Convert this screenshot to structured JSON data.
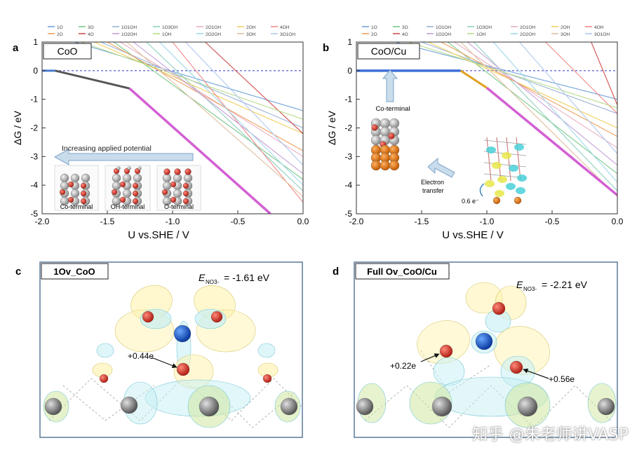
{
  "figure": {
    "panels": [
      {
        "letter": "a",
        "label": "CoO"
      },
      {
        "letter": "b",
        "label": "CoO/Cu"
      },
      {
        "letter": "c",
        "label": "1Ov_CoO",
        "energy": "E",
        "energy_sub": "NO3-",
        "energy_value": "= -1.61 eV"
      },
      {
        "letter": "d",
        "label": "Full Ov_CoO/Cu",
        "energy": "E",
        "energy_sub": "NO3-",
        "energy_value": "= -2.21 eV"
      }
    ],
    "legend": [
      {
        "name": "1O",
        "color": "#6fa3d8"
      },
      {
        "name": "3O",
        "color": "#7ac98a"
      },
      {
        "name": "1O1OH",
        "color": "#9ab3d6"
      },
      {
        "name": "1O3OH",
        "color": "#8fd0c0"
      },
      {
        "name": "2O1OH",
        "color": "#e8b0c4"
      },
      {
        "name": "2OH",
        "color": "#f0d060"
      },
      {
        "name": "4OH",
        "color": "#f08a8a"
      },
      {
        "name": "2O",
        "color": "#f0a060"
      },
      {
        "name": "4O",
        "color": "#d05050"
      },
      {
        "name": "1O2OH",
        "color": "#c5a0d8"
      },
      {
        "name": "1OH",
        "color": "#b8dc8a"
      },
      {
        "name": "2O2OH",
        "color": "#a0d8e8"
      },
      {
        "name": "3OH",
        "color": "#e0c0a0"
      },
      {
        "name": "3O1OH",
        "color": "#b0c8f0"
      }
    ],
    "panel_a_annotations": {
      "arrow_text": "Increasing applied potential",
      "structures": [
        "Co-terminal",
        "OH-terminal",
        "O-terminal"
      ]
    },
    "panel_b_annotations": {
      "top_label": "Co-terminal",
      "transfer_label_1": "Electron",
      "transfer_label_2": "transfer",
      "charge": "0.6 e⁻"
    },
    "panel_c_charges": [
      "+0.44e"
    ],
    "panel_d_charges": [
      "+0.22e",
      "+0.56e"
    ],
    "watermark": "知乎 @朱老师讲VASP"
  },
  "chart_data": [
    {
      "panel": "a",
      "type": "line",
      "title": "CoO",
      "xlabel": "U vs.SHE / V",
      "ylabel": "ΔG / eV",
      "xlim": [
        -2.0,
        0.0
      ],
      "ylim": [
        -5,
        1
      ],
      "xticks": [
        -2.0,
        -1.5,
        -1.0,
        -0.5,
        0.0
      ],
      "yticks": [
        1,
        0,
        -1,
        -2,
        -3,
        -4,
        -5
      ],
      "zero_line": {
        "y": 0,
        "color": "#3333cc",
        "style": "dashed"
      },
      "series": [
        {
          "name": "Co-terminal (stable)",
          "color": "#4a7bd0",
          "width": 3,
          "x": [
            -2.0,
            -1.9
          ],
          "y": [
            0.0,
            0.0
          ]
        },
        {
          "name": "OH-terminal (stable)",
          "color": "#555555",
          "width": 3,
          "x": [
            -1.9,
            -1.33
          ],
          "y": [
            0.0,
            -0.62
          ]
        },
        {
          "name": "O-terminal (stable)",
          "color": "#d35fd3",
          "width": 3.5,
          "x": [
            -1.33,
            -0.25
          ],
          "y": [
            -0.62,
            -5.0
          ]
        },
        {
          "name": "1O",
          "color": "#6fa3d8",
          "x": [
            -1.75,
            0.0
          ],
          "y": [
            1.0,
            -1.4
          ]
        },
        {
          "name": "3O",
          "color": "#7ac98a",
          "x": [
            -1.45,
            0.0
          ],
          "y": [
            1.0,
            -3.8
          ]
        },
        {
          "name": "1O1OH",
          "color": "#9ab3d6",
          "x": [
            -1.55,
            0.0
          ],
          "y": [
            1.0,
            -2.0
          ]
        },
        {
          "name": "1O3OH",
          "color": "#8fd0c0",
          "x": [
            -1.2,
            0.0
          ],
          "y": [
            1.0,
            -4.2
          ]
        },
        {
          "name": "2O1OH",
          "color": "#e8b0c4",
          "x": [
            -1.4,
            0.0
          ],
          "y": [
            1.0,
            -3.0
          ]
        },
        {
          "name": "2OH",
          "color": "#f0d060",
          "x": [
            -1.6,
            0.0
          ],
          "y": [
            1.0,
            -2.2
          ]
        },
        {
          "name": "4OH",
          "color": "#f08a8a",
          "x": [
            -1.0,
            0.0
          ],
          "y": [
            1.0,
            -4.6
          ]
        },
        {
          "name": "2O",
          "color": "#f0a060",
          "x": [
            -1.5,
            0.0
          ],
          "y": [
            1.0,
            -2.8
          ]
        },
        {
          "name": "4O",
          "color": "#d05050",
          "x": [
            -0.75,
            0.0
          ],
          "y": [
            1.0,
            -2.2
          ]
        },
        {
          "name": "1O2OH",
          "color": "#c5a0d8",
          "x": [
            -1.3,
            0.0
          ],
          "y": [
            1.0,
            -3.6
          ]
        },
        {
          "name": "1OH",
          "color": "#b8dc8a",
          "x": [
            -1.7,
            0.0
          ],
          "y": [
            1.0,
            -1.7
          ]
        },
        {
          "name": "2O2OH",
          "color": "#a0d8e8",
          "x": [
            -1.1,
            0.0
          ],
          "y": [
            1.0,
            -4.0
          ]
        },
        {
          "name": "3OH",
          "color": "#e0c0a0",
          "x": [
            -1.35,
            0.0
          ],
          "y": [
            1.0,
            -4.4
          ]
        },
        {
          "name": "3O1OH",
          "color": "#b0c8f0",
          "x": [
            -0.9,
            0.0
          ],
          "y": [
            1.0,
            -3.3
          ]
        }
      ]
    },
    {
      "panel": "b",
      "type": "line",
      "title": "CoO/Cu",
      "xlabel": "U vs.SHE / V",
      "ylabel": "ΔG / eV",
      "xlim": [
        -2.0,
        0.0
      ],
      "ylim": [
        -5,
        1
      ],
      "xticks": [
        -2.0,
        -1.5,
        -1.0,
        -0.5,
        0.0
      ],
      "yticks": [
        1,
        0,
        -1,
        -2,
        -3,
        -4,
        -5
      ],
      "zero_line": {
        "y": 0,
        "color": "#3333cc",
        "style": "dashed"
      },
      "series": [
        {
          "name": "Co-terminal (stable)",
          "color": "#3f6fd6",
          "width": 3.5,
          "x": [
            -2.0,
            -1.2
          ],
          "y": [
            0.0,
            0.0
          ]
        },
        {
          "name": "OH-terminal (stable)",
          "color": "#e0a020",
          "width": 3,
          "x": [
            -1.2,
            -1.0
          ],
          "y": [
            0.0,
            -0.6
          ]
        },
        {
          "name": "O-terminal (stable)",
          "color": "#d35fd3",
          "width": 3.5,
          "x": [
            -1.0,
            0.0
          ],
          "y": [
            -0.6,
            -4.35
          ]
        },
        {
          "name": "1O",
          "color": "#6fa3d8",
          "x": [
            -1.7,
            0.0
          ],
          "y": [
            1.0,
            -1.0
          ]
        },
        {
          "name": "3O",
          "color": "#7ac98a",
          "x": [
            -1.3,
            0.0
          ],
          "y": [
            1.0,
            -3.6
          ]
        },
        {
          "name": "1O1OH",
          "color": "#9ab3d6",
          "x": [
            -1.5,
            0.0
          ],
          "y": [
            1.0,
            -1.5
          ]
        },
        {
          "name": "1O3OH",
          "color": "#8fd0c0",
          "x": [
            -1.1,
            0.0
          ],
          "y": [
            1.0,
            -4.2
          ]
        },
        {
          "name": "2O1OH",
          "color": "#e8b0c4",
          "x": [
            -1.25,
            0.0
          ],
          "y": [
            1.0,
            -2.7
          ]
        },
        {
          "name": "2OH",
          "color": "#f0d060",
          "x": [
            -1.45,
            0.0
          ],
          "y": [
            1.0,
            -2.0
          ]
        },
        {
          "name": "4OH",
          "color": "#f08a8a",
          "x": [
            -0.55,
            0.0
          ],
          "y": [
            1.0,
            -1.5
          ]
        },
        {
          "name": "2O",
          "color": "#f0a060",
          "x": [
            -1.35,
            0.0
          ],
          "y": [
            1.0,
            -2.3
          ]
        },
        {
          "name": "4O",
          "color": "#d05050",
          "x": [
            -0.2,
            0.0
          ],
          "y": [
            1.0,
            -1.2
          ]
        },
        {
          "name": "1O2OH",
          "color": "#c5a0d8",
          "x": [
            -1.15,
            0.0
          ],
          "y": [
            1.0,
            -3.3
          ]
        },
        {
          "name": "1OH",
          "color": "#b8dc8a",
          "x": [
            -1.6,
            0.0
          ],
          "y": [
            1.0,
            -1.3
          ]
        },
        {
          "name": "2O2OH",
          "color": "#a0d8e8",
          "x": [
            -0.95,
            0.0
          ],
          "y": [
            1.0,
            -3.9
          ]
        },
        {
          "name": "3OH",
          "color": "#e0c0a0",
          "x": [
            -1.2,
            0.0
          ],
          "y": [
            1.0,
            -4.4
          ]
        },
        {
          "name": "3O1OH",
          "color": "#b0c8f0",
          "x": [
            -0.75,
            0.0
          ],
          "y": [
            1.0,
            -2.9
          ]
        }
      ]
    }
  ]
}
